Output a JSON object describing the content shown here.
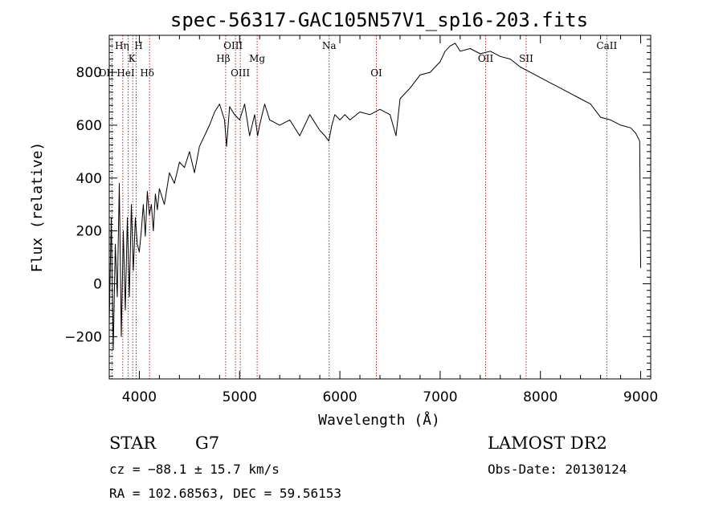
{
  "chart_data": {
    "type": "line",
    "title": "spec-56317-GAC105N57V1_sp16-203.fits",
    "xlabel": "Wavelength (Å)",
    "ylabel": "Flux (relative)",
    "xlim": [
      3700,
      9100
    ],
    "ylim": [
      -360,
      940
    ],
    "xticks": [
      4000,
      5000,
      6000,
      7000,
      8000,
      9000
    ],
    "xtick_labels": [
      "4000",
      "5000",
      "6000",
      "7000",
      "8000",
      "9000"
    ],
    "yticks": [
      -200,
      0,
      200,
      400,
      600,
      800
    ],
    "ytick_labels": [
      "−200",
      "0",
      "200",
      "400",
      "600",
      "800"
    ],
    "grid": false,
    "series": [
      {
        "color": "#000000",
        "x": [
          3700,
          3720,
          3740,
          3760,
          3780,
          3800,
          3820,
          3840,
          3860,
          3880,
          3900,
          3920,
          3940,
          3960,
          3980,
          4000,
          4020,
          4040,
          4060,
          4080,
          4100,
          4120,
          4140,
          4160,
          4180,
          4200,
          4250,
          4300,
          4350,
          4400,
          4450,
          4500,
          4550,
          4600,
          4650,
          4700,
          4750,
          4800,
          4850,
          4870,
          4900,
          4950,
          5000,
          5050,
          5100,
          5150,
          5180,
          5200,
          5250,
          5300,
          5400,
          5500,
          5600,
          5700,
          5800,
          5850,
          5890,
          5920,
          5950,
          6000,
          6050,
          6100,
          6200,
          6300,
          6400,
          6500,
          6560,
          6600,
          6700,
          6800,
          6900,
          7000,
          7050,
          7100,
          7150,
          7200,
          7300,
          7400,
          7500,
          7600,
          7700,
          7800,
          7900,
          8000,
          8100,
          8200,
          8300,
          8400,
          8500,
          8600,
          8700,
          8800,
          8900,
          8950,
          8990,
          9000
        ],
        "y": [
          -150,
          250,
          -250,
          150,
          -50,
          380,
          -200,
          200,
          -100,
          250,
          -50,
          300,
          50,
          250,
          150,
          120,
          200,
          300,
          180,
          350,
          260,
          300,
          200,
          340,
          280,
          360,
          300,
          420,
          380,
          460,
          440,
          500,
          420,
          520,
          560,
          600,
          650,
          680,
          620,
          520,
          670,
          640,
          620,
          680,
          560,
          640,
          560,
          600,
          680,
          620,
          600,
          620,
          560,
          640,
          580,
          560,
          540,
          600,
          640,
          620,
          640,
          620,
          650,
          640,
          660,
          640,
          560,
          700,
          740,
          790,
          800,
          840,
          880,
          900,
          910,
          880,
          890,
          870,
          880,
          860,
          850,
          820,
          800,
          780,
          760,
          740,
          720,
          700,
          680,
          630,
          620,
          600,
          590,
          570,
          540,
          60
        ]
      }
    ],
    "lines": [
      {
        "x": 3727,
        "label": "OII"
      },
      {
        "x": 3835,
        "label": "Hη"
      },
      {
        "x": 3889,
        "label": "HeI"
      },
      {
        "x": 3934,
        "label": "K"
      },
      {
        "x": 3968,
        "label": "H"
      },
      {
        "x": 4102,
        "label": "Hδ"
      },
      {
        "x": 4861,
        "label": "Hβ"
      },
      {
        "x": 4959,
        "label": "OIII"
      },
      {
        "x": 5007,
        "label": "OIII"
      },
      {
        "x": 5175,
        "label": "Mg"
      },
      {
        "x": 5893,
        "label": "Na"
      },
      {
        "x": 6364,
        "label": "OI"
      },
      {
        "x": 7454,
        "label": "OII"
      },
      {
        "x": 7858,
        "label": "SII"
      },
      {
        "x": 8662,
        "label": "CaII"
      }
    ]
  },
  "info": {
    "object_class": "STAR",
    "subclass": "G7",
    "survey": "LAMOST DR2",
    "cz_line": "cz = −88.1 ± 15.7 km/s",
    "obs_date_line": "Obs-Date: 20130124",
    "coords_line": "RA = 102.68563, DEC =  59.56153"
  }
}
